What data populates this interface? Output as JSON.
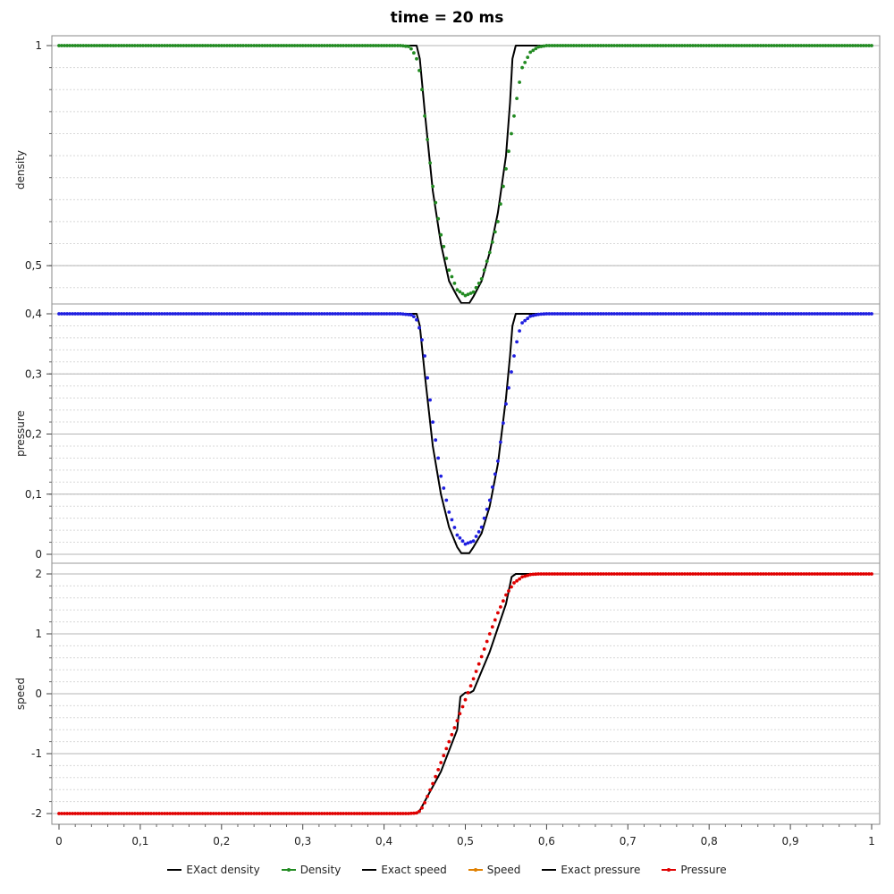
{
  "title": "time = 20 ms",
  "chart_data": {
    "type": "line",
    "title": "time = 20 ms",
    "xlim": [
      0,
      1
    ],
    "x_ticks": [
      "0",
      "0,1",
      "0,2",
      "0,3",
      "0,4",
      "0,5",
      "0,6",
      "0,7",
      "0,8",
      "0,9",
      "1"
    ],
    "grid": true,
    "legend_position": "bottom-center",
    "panels": [
      {
        "ylabel": "density",
        "ylim": [
          0.413,
          1.0
        ],
        "y_ticks": [
          {
            "value": 1,
            "label": "1"
          },
          {
            "value": 0.5,
            "label": "0,5"
          }
        ],
        "series": [
          {
            "name": "EXact density",
            "color": "#000000",
            "style": "line",
            "points": [
              [
                0,
                1
              ],
              [
                0.44,
                1
              ],
              [
                0.444,
                0.97
              ],
              [
                0.45,
                0.85
              ],
              [
                0.46,
                0.67
              ],
              [
                0.47,
                0.55
              ],
              [
                0.48,
                0.465
              ],
              [
                0.49,
                0.43
              ],
              [
                0.495,
                0.415
              ],
              [
                0.505,
                0.415
              ],
              [
                0.51,
                0.43
              ],
              [
                0.52,
                0.465
              ],
              [
                0.53,
                0.53
              ],
              [
                0.54,
                0.62
              ],
              [
                0.55,
                0.75
              ],
              [
                0.555,
                0.87
              ],
              [
                0.558,
                0.97
              ],
              [
                0.562,
                1
              ],
              [
                1,
                1
              ]
            ]
          },
          {
            "name": "Density",
            "color": "#228B22",
            "style": "dots",
            "points": [
              [
                0,
                1
              ],
              [
                0.42,
                1
              ],
              [
                0.43,
                0.998
              ],
              [
                0.435,
                0.99
              ],
              [
                0.44,
                0.97
              ],
              [
                0.445,
                0.93
              ],
              [
                0.45,
                0.84
              ],
              [
                0.46,
                0.68
              ],
              [
                0.47,
                0.57
              ],
              [
                0.48,
                0.49
              ],
              [
                0.49,
                0.445
              ],
              [
                0.5,
                0.432
              ],
              [
                0.51,
                0.44
              ],
              [
                0.52,
                0.47
              ],
              [
                0.53,
                0.53
              ],
              [
                0.54,
                0.6
              ],
              [
                0.55,
                0.72
              ],
              [
                0.56,
                0.84
              ],
              [
                0.565,
                0.9
              ],
              [
                0.57,
                0.95
              ],
              [
                0.58,
                0.985
              ],
              [
                0.59,
                0.997
              ],
              [
                0.6,
                1
              ],
              [
                1,
                1
              ]
            ]
          }
        ]
      },
      {
        "ylabel": "pressure",
        "ylim": [
          0,
          0.4
        ],
        "y_ticks": [
          {
            "value": 0.4,
            "label": "0,4"
          },
          {
            "value": 0.3,
            "label": "0,3"
          },
          {
            "value": 0.2,
            "label": "0,2"
          },
          {
            "value": 0.1,
            "label": "0,1"
          },
          {
            "value": 0,
            "label": "0"
          }
        ],
        "series": [
          {
            "name": "Exact pressure",
            "color": "#000000",
            "style": "line",
            "points": [
              [
                0,
                0.4
              ],
              [
                0.44,
                0.4
              ],
              [
                0.444,
                0.38
              ],
              [
                0.45,
                0.3
              ],
              [
                0.46,
                0.18
              ],
              [
                0.47,
                0.1
              ],
              [
                0.48,
                0.045
              ],
              [
                0.49,
                0.012
              ],
              [
                0.495,
                0.002
              ],
              [
                0.505,
                0.002
              ],
              [
                0.51,
                0.012
              ],
              [
                0.52,
                0.035
              ],
              [
                0.53,
                0.08
              ],
              [
                0.54,
                0.15
              ],
              [
                0.55,
                0.26
              ],
              [
                0.555,
                0.33
              ],
              [
                0.558,
                0.38
              ],
              [
                0.562,
                0.4
              ],
              [
                1,
                0.4
              ]
            ]
          },
          {
            "name": "Pressure",
            "color": "#1f1fe0",
            "style": "dots",
            "points": [
              [
                0,
                0.4
              ],
              [
                0.42,
                0.4
              ],
              [
                0.435,
                0.398
              ],
              [
                0.44,
                0.39
              ],
              [
                0.445,
                0.37
              ],
              [
                0.45,
                0.33
              ],
              [
                0.46,
                0.22
              ],
              [
                0.47,
                0.13
              ],
              [
                0.48,
                0.07
              ],
              [
                0.49,
                0.032
              ],
              [
                0.5,
                0.017
              ],
              [
                0.51,
                0.022
              ],
              [
                0.52,
                0.045
              ],
              [
                0.53,
                0.09
              ],
              [
                0.54,
                0.155
              ],
              [
                0.55,
                0.25
              ],
              [
                0.56,
                0.33
              ],
              [
                0.565,
                0.365
              ],
              [
                0.57,
                0.385
              ],
              [
                0.58,
                0.396
              ],
              [
                0.59,
                0.399
              ],
              [
                0.6,
                0.4
              ],
              [
                1,
                0.4
              ]
            ]
          }
        ]
      },
      {
        "ylabel": "speed",
        "ylim": [
          -2,
          2
        ],
        "y_ticks": [
          {
            "value": 2,
            "label": "2"
          },
          {
            "value": 1,
            "label": "1"
          },
          {
            "value": 0,
            "label": "0"
          },
          {
            "value": -1,
            "label": "-1"
          },
          {
            "value": -2,
            "label": "-2"
          }
        ],
        "series": [
          {
            "name": "Exact speed",
            "color": "#000000",
            "style": "line",
            "points": [
              [
                0,
                -2
              ],
              [
                0.44,
                -2
              ],
              [
                0.444,
                -1.95
              ],
              [
                0.47,
                -1.3
              ],
              [
                0.49,
                -0.6
              ],
              [
                0.494,
                -0.05
              ],
              [
                0.5,
                0.02
              ],
              [
                0.506,
                0.02
              ],
              [
                0.51,
                0.05
              ],
              [
                0.53,
                0.7
              ],
              [
                0.55,
                1.5
              ],
              [
                0.557,
                1.95
              ],
              [
                0.562,
                2
              ],
              [
                1,
                2
              ]
            ]
          },
          {
            "name": "Speed",
            "color": "#e00000",
            "style": "dots",
            "points": [
              [
                0,
                -2
              ],
              [
                0.43,
                -2
              ],
              [
                0.44,
                -1.99
              ],
              [
                0.445,
                -1.95
              ],
              [
                0.45,
                -1.82
              ],
              [
                0.46,
                -1.5
              ],
              [
                0.47,
                -1.15
              ],
              [
                0.48,
                -0.8
              ],
              [
                0.49,
                -0.45
              ],
              [
                0.5,
                -0.1
              ],
              [
                0.51,
                0.25
              ],
              [
                0.52,
                0.62
              ],
              [
                0.53,
                1.0
              ],
              [
                0.54,
                1.35
              ],
              [
                0.55,
                1.65
              ],
              [
                0.56,
                1.85
              ],
              [
                0.57,
                1.95
              ],
              [
                0.58,
                1.99
              ],
              [
                0.59,
                2
              ],
              [
                1,
                2
              ]
            ]
          }
        ]
      }
    ],
    "legend": [
      {
        "label": "EXact density",
        "color": "#000000",
        "marker": false
      },
      {
        "label": "Density",
        "color": "#228B22",
        "marker": true
      },
      {
        "label": "Exact speed",
        "color": "#000000",
        "marker": false
      },
      {
        "label": "Speed",
        "color": "#E08000",
        "marker": true
      },
      {
        "label": "Exact pressure",
        "color": "#000000",
        "marker": false
      },
      {
        "label": "Pressure",
        "color": "#E00000",
        "marker": true
      }
    ]
  }
}
